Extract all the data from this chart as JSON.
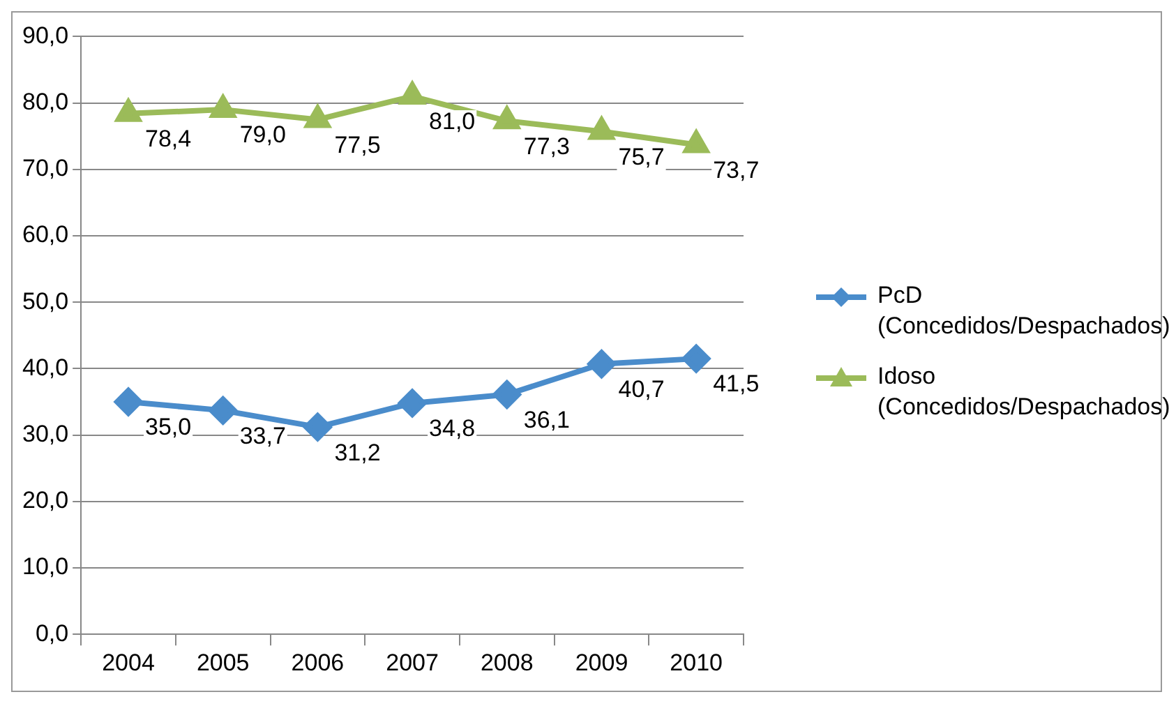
{
  "chart_data": {
    "type": "line",
    "categories": [
      "2004",
      "2005",
      "2006",
      "2007",
      "2008",
      "2009",
      "2010"
    ],
    "series": [
      {
        "name": "PcD (Concedidos/Despachados)",
        "color": "#4a8ccb",
        "marker": "diamond",
        "values": [
          35.0,
          33.7,
          31.2,
          34.8,
          36.1,
          40.7,
          41.5
        ],
        "value_labels": [
          "35,0",
          "33,7",
          "31,2",
          "34,8",
          "36,1",
          "40,7",
          "41,5"
        ]
      },
      {
        "name": "Idoso (Concedidos/Despachados)",
        "color": "#9bbb59",
        "marker": "triangle",
        "values": [
          78.4,
          79.0,
          77.5,
          81.0,
          77.3,
          75.7,
          73.7
        ],
        "value_labels": [
          "78,4",
          "79,0",
          "77,5",
          "81,0",
          "77,3",
          "75,7",
          "73,7"
        ]
      }
    ],
    "ylim": [
      0,
      90
    ],
    "yticks": [
      {
        "value": 0,
        "label": "0,0"
      },
      {
        "value": 10,
        "label": "10,0"
      },
      {
        "value": 20,
        "label": "20,0"
      },
      {
        "value": 30,
        "label": "30,0"
      },
      {
        "value": 40,
        "label": "40,0"
      },
      {
        "value": 50,
        "label": "50,0"
      },
      {
        "value": 60,
        "label": "60,0"
      },
      {
        "value": 70,
        "label": "70,0"
      },
      {
        "value": 80,
        "label": "80,0"
      },
      {
        "value": 90,
        "label": "90,0"
      }
    ],
    "grid": "y",
    "legend": "right",
    "line_style": "solid"
  }
}
